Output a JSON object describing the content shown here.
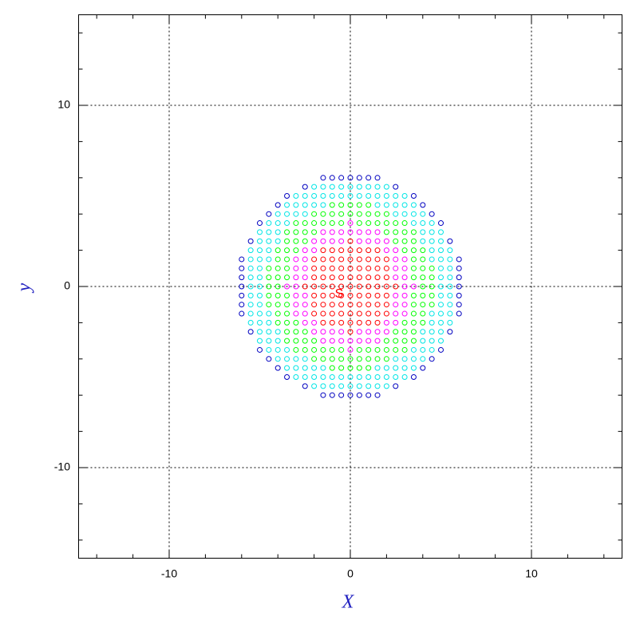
{
  "chart_data": {
    "type": "scatter",
    "x_label": "X",
    "y_label": "y",
    "annotation": "S",
    "xlim": [
      -15,
      15
    ],
    "ylim": [
      -15,
      15
    ],
    "xticks": [
      -10,
      0,
      10
    ],
    "yticks": [
      -10,
      0,
      10
    ],
    "xminorticks": [
      -14,
      -12,
      -8,
      -6,
      -4,
      -2,
      2,
      4,
      6,
      8,
      12,
      14
    ],
    "yminorticks": [
      -14,
      -12,
      -8,
      -6,
      -4,
      -2,
      2,
      4,
      6,
      8,
      12,
      14
    ],
    "grid": true,
    "marker_size": 3,
    "series": [
      {
        "color": "#ff0000",
        "x": [
          0,
          -1.5,
          -1,
          -0.5,
          0,
          0.5,
          1,
          1.5,
          -2,
          -1.5,
          -1,
          -0.5,
          0,
          0.5,
          1,
          1.5,
          2,
          -2,
          -1.5,
          -1,
          -0.5,
          0,
          0.5,
          1,
          1.5,
          2,
          -2,
          -1.5,
          -1,
          -0.5,
          0,
          0.5,
          1,
          1.5,
          2,
          -2.5,
          -2,
          -1.5,
          -1,
          -0.5,
          0,
          0.5,
          1,
          1.5,
          2,
          2.5,
          -2,
          -1.5,
          -1,
          -0.5,
          0,
          0.5,
          1,
          1.5,
          2,
          -2,
          -1.5,
          -1,
          -0.5,
          0,
          0.5,
          1,
          1.5,
          2,
          -2,
          -1.5,
          -1,
          -0.5,
          0,
          0.5,
          1,
          1.5,
          2,
          -1.5,
          -1,
          -0.5,
          0,
          0.5,
          1,
          1.5,
          0
        ],
        "y": [
          2.5,
          2,
          2,
          2,
          2,
          2,
          2,
          2,
          1.5,
          1.5,
          1.5,
          1.5,
          1.5,
          1.5,
          1.5,
          1.5,
          1.5,
          1,
          1,
          1,
          1,
          1,
          1,
          1,
          1,
          1,
          0.5,
          0.5,
          0.5,
          0.5,
          0.5,
          0.5,
          0.5,
          0.5,
          0.5,
          0,
          0,
          0,
          0,
          0,
          0,
          0,
          0,
          0,
          0,
          0,
          -0.5,
          -0.5,
          -0.5,
          -0.5,
          -0.5,
          -0.5,
          -0.5,
          -0.5,
          -0.5,
          -1,
          -1,
          -1,
          -1,
          -1,
          -1,
          -1,
          -1,
          -1,
          -1.5,
          -1.5,
          -1.5,
          -1.5,
          -1.5,
          -1.5,
          -1.5,
          -1.5,
          -1.5,
          -2,
          -2,
          -2,
          -2,
          -2,
          -2,
          -2,
          -2.5
        ]
      },
      {
        "color": "#ff00ff",
        "x": [
          0,
          -1.5,
          -1,
          -0.5,
          0,
          0.5,
          1,
          1.5,
          -2,
          -1.5,
          -1,
          -0.5,
          0.5,
          1,
          1.5,
          2,
          -2.5,
          -2,
          2,
          2.5,
          -3,
          -2.5,
          2.5,
          3,
          -3,
          -2.5,
          2.5,
          3,
          -3,
          -2.5,
          2.5,
          3,
          -3.5,
          -3,
          3,
          3.5,
          -3,
          -2.5,
          2.5,
          3,
          -3,
          -2.5,
          2.5,
          3,
          -3,
          -2.5,
          2.5,
          3,
          -2.5,
          -2,
          2,
          2.5,
          -2,
          -1.5,
          -1,
          -0.5,
          0.5,
          1,
          1.5,
          2,
          -1.5,
          -1,
          -0.5,
          0,
          0.5,
          1,
          1.5,
          0
        ],
        "y": [
          3.5,
          3,
          3,
          3,
          3,
          3,
          3,
          3,
          2.5,
          2.5,
          2.5,
          2.5,
          2.5,
          2.5,
          2.5,
          2.5,
          2,
          2,
          2,
          2,
          1.5,
          1.5,
          1.5,
          1.5,
          1,
          1,
          1,
          1,
          0.5,
          0.5,
          0.5,
          0.5,
          0,
          0,
          0,
          0,
          -0.5,
          -0.5,
          -0.5,
          -0.5,
          -1,
          -1,
          -1,
          -1,
          -1.5,
          -1.5,
          -1.5,
          -1.5,
          -2,
          -2,
          -2,
          -2,
          -2.5,
          -2.5,
          -2.5,
          -2.5,
          -2.5,
          -2.5,
          -2.5,
          -2.5,
          -3,
          -3,
          -3,
          -3,
          -3,
          -3,
          -3,
          -3.5
        ]
      },
      {
        "color": "#00ff00",
        "x": [
          -1,
          -0.5,
          0,
          0.5,
          1,
          -2,
          -1.5,
          -1,
          -0.5,
          0,
          0.5,
          1,
          1.5,
          2,
          -3,
          -2.5,
          -2,
          -1.5,
          -1,
          -0.5,
          0.5,
          1,
          1.5,
          2,
          2.5,
          3,
          -3.5,
          -3,
          -2.5,
          -2,
          2,
          2.5,
          3,
          3.5,
          -3.5,
          -3,
          -2.5,
          2.5,
          3,
          3.5,
          -4,
          -3.5,
          -3,
          3,
          3.5,
          4,
          -4,
          -3.5,
          3.5,
          4,
          -4.5,
          -4,
          -3.5,
          3.5,
          4,
          4.5,
          -4.5,
          -4,
          -3.5,
          3.5,
          4,
          4.5,
          -4.5,
          -4,
          4,
          4.5,
          -4.5,
          -4,
          -3.5,
          3.5,
          4,
          4.5,
          -4.5,
          -4,
          -3.5,
          3.5,
          4,
          4.5,
          -4,
          -3.5,
          3.5,
          4,
          -4,
          -3.5,
          -3,
          3,
          3.5,
          4,
          -3.5,
          -3,
          -2.5,
          2.5,
          3,
          3.5,
          -3.5,
          -3,
          -2.5,
          -2,
          2,
          2.5,
          3,
          3.5,
          -3,
          -2.5,
          -2,
          -1.5,
          -1,
          -0.5,
          0.5,
          1,
          1.5,
          2,
          2.5,
          3,
          -2,
          -1.5,
          -1,
          -0.5,
          0,
          0.5,
          1,
          1.5,
          2,
          -1,
          -0.5,
          0,
          0.5,
          1
        ],
        "y": [
          4.5,
          4.5,
          4.5,
          4.5,
          4.5,
          4,
          4,
          4,
          4,
          4,
          4,
          4,
          4,
          4,
          3.5,
          3.5,
          3.5,
          3.5,
          3.5,
          3.5,
          3.5,
          3.5,
          3.5,
          3.5,
          3.5,
          3.5,
          3,
          3,
          3,
          3,
          3,
          3,
          3,
          3,
          2.5,
          2.5,
          2.5,
          2.5,
          2.5,
          2.5,
          2,
          2,
          2,
          2,
          2,
          2,
          1.5,
          1.5,
          1.5,
          1.5,
          1,
          1,
          1,
          1,
          1,
          1,
          0.5,
          0.5,
          0.5,
          0.5,
          0.5,
          0.5,
          0,
          0,
          0,
          0,
          -0.5,
          -0.5,
          -0.5,
          -0.5,
          -0.5,
          -0.5,
          -1,
          -1,
          -1,
          -1,
          -1,
          -1,
          -1.5,
          -1.5,
          -1.5,
          -1.5,
          -2,
          -2,
          -2,
          -2,
          -2,
          -2,
          -2.5,
          -2.5,
          -2.5,
          -2.5,
          -2.5,
          -2.5,
          -3,
          -3,
          -3,
          -3,
          -3,
          -3,
          -3,
          -3,
          -3.5,
          -3.5,
          -3.5,
          -3.5,
          -3.5,
          -3.5,
          -3.5,
          -3.5,
          -3.5,
          -3.5,
          -3.5,
          -3.5,
          -4,
          -4,
          -4,
          -4,
          -4,
          -4,
          -4,
          -4,
          -4,
          -4.5,
          -4.5,
          -4.5,
          -4.5,
          -4.5
        ]
      },
      {
        "color": "#00e5e5",
        "x": [
          -2,
          -1.5,
          -1,
          -0.5,
          0,
          0.5,
          1,
          1.5,
          2,
          -3,
          -2.5,
          -2,
          -1.5,
          -1,
          -0.5,
          0,
          0.5,
          1,
          1.5,
          2,
          2.5,
          3,
          -3.5,
          -3,
          -2.5,
          -2,
          -1.5,
          1.5,
          2,
          2.5,
          3,
          3.5,
          -4,
          -3.5,
          -3,
          -2.5,
          2.5,
          3,
          3.5,
          4,
          -4.5,
          -4,
          -3.5,
          3.5,
          4,
          4.5,
          -5,
          -4.5,
          -4,
          4,
          4.5,
          5,
          -5,
          -4.5,
          -4,
          4,
          4.5,
          5,
          -5.5,
          -5,
          -4.5,
          4.5,
          5,
          5.5,
          -5.5,
          -5,
          -4.5,
          4.5,
          5,
          5.5,
          -5.5,
          -5,
          5,
          5.5,
          -5.5,
          -5,
          5,
          5.5,
          -5.5,
          -5,
          5,
          5.5,
          -5.5,
          -5,
          5,
          5.5,
          -5.5,
          -5,
          5,
          5.5,
          -5.5,
          -5,
          -4.5,
          4.5,
          5,
          5.5,
          -5.5,
          -5,
          -4.5,
          4.5,
          5,
          5.5,
          -5,
          -4.5,
          -4,
          4,
          4.5,
          5,
          -5,
          -4.5,
          -4,
          4,
          4.5,
          5,
          -4.5,
          -4,
          -3.5,
          3.5,
          4,
          4.5,
          -4,
          -3.5,
          -3,
          -2.5,
          2.5,
          3,
          3.5,
          4,
          -3.5,
          -3,
          -2.5,
          -2,
          -1.5,
          1.5,
          2,
          2.5,
          3,
          3.5,
          -3,
          -2.5,
          -2,
          -1.5,
          -1,
          -0.5,
          0,
          0.5,
          1,
          1.5,
          2,
          2.5,
          3,
          -2,
          -1.5,
          -1,
          -0.5,
          0,
          0.5,
          1,
          1.5,
          2
        ],
        "y": [
          5.5,
          5.5,
          5.5,
          5.5,
          5.5,
          5.5,
          5.5,
          5.5,
          5.5,
          5,
          5,
          5,
          5,
          5,
          5,
          5,
          5,
          5,
          5,
          5,
          5,
          5,
          4.5,
          4.5,
          4.5,
          4.5,
          4.5,
          4.5,
          4.5,
          4.5,
          4.5,
          4.5,
          4,
          4,
          4,
          4,
          4,
          4,
          4,
          4,
          3.5,
          3.5,
          3.5,
          3.5,
          3.5,
          3.5,
          3,
          3,
          3,
          3,
          3,
          3,
          2.5,
          2.5,
          2.5,
          2.5,
          2.5,
          2.5,
          2,
          2,
          2,
          2,
          2,
          2,
          1.5,
          1.5,
          1.5,
          1.5,
          1.5,
          1.5,
          1,
          1,
          1,
          1,
          0.5,
          0.5,
          0.5,
          0.5,
          0,
          0,
          0,
          0,
          -0.5,
          -0.5,
          -0.5,
          -0.5,
          -1,
          -1,
          -1,
          -1,
          -1.5,
          -1.5,
          -1.5,
          -1.5,
          -1.5,
          -1.5,
          -2,
          -2,
          -2,
          -2,
          -2,
          -2,
          -2.5,
          -2.5,
          -2.5,
          -2.5,
          -2.5,
          -2.5,
          -3,
          -3,
          -3,
          -3,
          -3,
          -3,
          -3.5,
          -3.5,
          -3.5,
          -3.5,
          -3.5,
          -3.5,
          -4,
          -4,
          -4,
          -4,
          -4,
          -4,
          -4,
          -4,
          -4.5,
          -4.5,
          -4.5,
          -4.5,
          -4.5,
          -4.5,
          -4.5,
          -4.5,
          -4.5,
          -4.5,
          -5,
          -5,
          -5,
          -5,
          -5,
          -5,
          -5,
          -5,
          -5,
          -5,
          -5,
          -5,
          -5,
          -5.5,
          -5.5,
          -5.5,
          -5.5,
          -5.5,
          -5.5,
          -5.5,
          -5.5,
          -5.5
        ]
      },
      {
        "color": "#0000c0",
        "x": [
          -1.5,
          -1,
          -0.5,
          0,
          0.5,
          1,
          1.5,
          -2.5,
          2.5,
          -3.5,
          3.5,
          -4,
          4,
          -4.5,
          4.5,
          -5,
          5,
          -5.5,
          5.5,
          -6,
          6,
          -6,
          6,
          -6,
          6,
          -6,
          6,
          -6,
          6,
          -6,
          6,
          -6,
          6,
          -5.5,
          5.5,
          -5,
          5,
          -4.5,
          4.5,
          -4,
          4,
          -3.5,
          3.5,
          -2.5,
          2.5,
          -1.5,
          -1,
          -0.5,
          0,
          0.5,
          1,
          1.5
        ],
        "y": [
          6,
          6,
          6,
          6,
          6,
          6,
          6,
          5.5,
          5.5,
          5,
          5,
          4.5,
          4.5,
          4,
          4,
          3.5,
          3.5,
          2.5,
          2.5,
          1.5,
          1.5,
          1,
          1,
          0.5,
          0.5,
          0,
          0,
          -0.5,
          -0.5,
          -1,
          -1,
          -1.5,
          -1.5,
          -2.5,
          -2.5,
          -3.5,
          -3.5,
          -4,
          -4,
          -4.5,
          -4.5,
          -5,
          -5,
          -5.5,
          -5.5,
          -6,
          -6,
          -6,
          -6,
          -6,
          -6,
          -6
        ]
      }
    ]
  }
}
